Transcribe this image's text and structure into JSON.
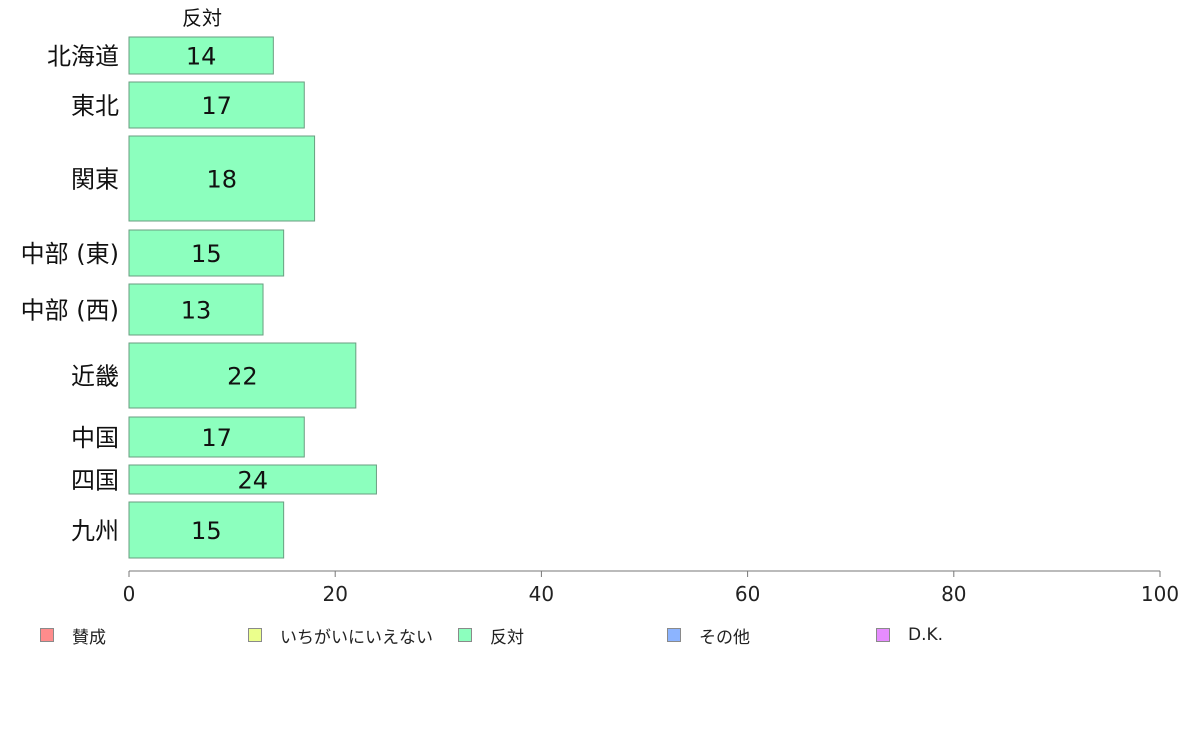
{
  "chart_data": {
    "type": "bar",
    "orientation": "horizontal",
    "column_title": "反対",
    "categories": [
      "北海道",
      "東北",
      "関東",
      "中部 (東)",
      "中部 (西)",
      "近畿",
      "中国",
      "四国",
      "九州"
    ],
    "series": [
      {
        "name": "反対",
        "values": [
          14,
          17,
          18,
          15,
          13,
          22,
          17,
          24,
          15
        ],
        "color": "#8cffbe"
      }
    ],
    "xlim": [
      0,
      100
    ],
    "xticks": [
      0,
      20,
      40,
      60,
      80,
      100
    ],
    "grid": false,
    "legend": {
      "placement": "bottom",
      "items": [
        {
          "label": "賛成",
          "color": "#ff8c8c"
        },
        {
          "label": "いちがいにいえない",
          "color": "#ebff8c"
        },
        {
          "label": "反対",
          "color": "#8cffbe"
        },
        {
          "label": "その他",
          "color": "#8cb4ff"
        },
        {
          "label": "D.K.",
          "color": "#e68cff"
        }
      ]
    }
  }
}
